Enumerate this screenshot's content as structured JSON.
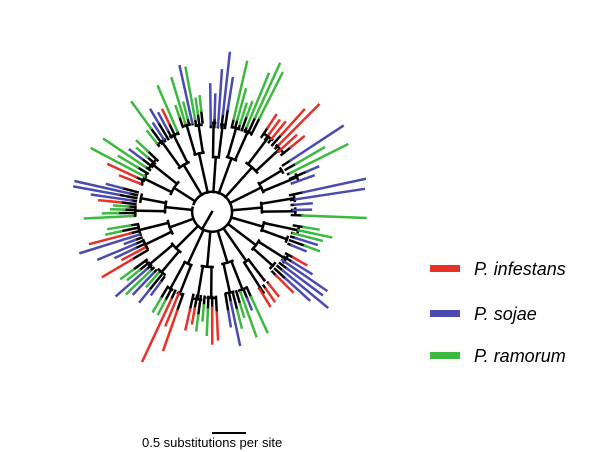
{
  "legend": [
    {
      "label": "P. infestans",
      "color": "#e53128"
    },
    {
      "label": "P. sojae",
      "color": "#4a4bb0"
    },
    {
      "label": "P. ramorum",
      "color": "#3cb93f"
    }
  ],
  "scale_bar": {
    "label": "0.5 substitutions per site",
    "length": 0.5
  },
  "branch_color_internal": "#000000",
  "tree_layout": "circular"
}
